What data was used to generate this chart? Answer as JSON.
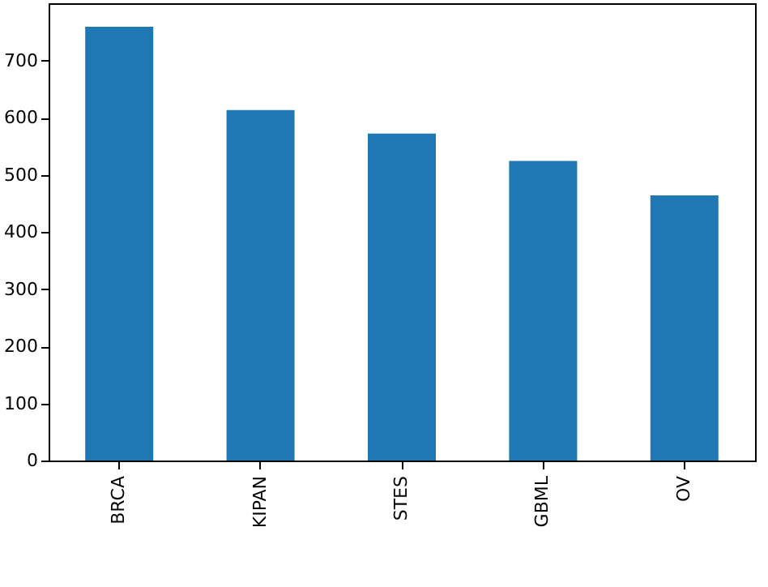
{
  "chart_data": {
    "type": "bar",
    "categories": [
      "BRCA",
      "KIPAN",
      "STES",
      "GBML",
      "OV"
    ],
    "values": [
      759,
      613,
      572,
      524,
      464
    ],
    "color": "#1f77b4",
    "ylim": [
      0,
      800
    ],
    "yticks": [
      0,
      100,
      200,
      300,
      400,
      500,
      600,
      700
    ],
    "grid": false
  }
}
